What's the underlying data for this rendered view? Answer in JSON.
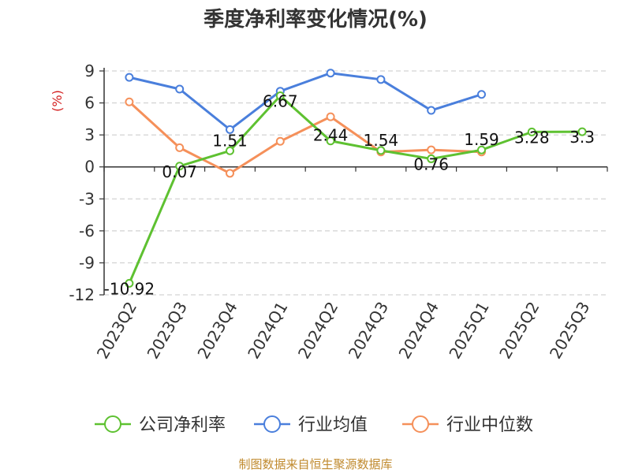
{
  "chart_data": {
    "type": "line",
    "title": "季度净利率变化情况(%)",
    "ylabel": "(%)",
    "categories": [
      "2023Q2",
      "2023Q3",
      "2023Q4",
      "2024Q1",
      "2024Q2",
      "2024Q3",
      "2024Q4",
      "2025Q1",
      "2025Q2",
      "2025Q3"
    ],
    "ylim": [
      -12,
      9
    ],
    "yticks": [
      9,
      6,
      3,
      0,
      -3,
      -6,
      -9,
      -12
    ],
    "grid": true,
    "legend_position": "bottom",
    "series": [
      {
        "name": "公司净利率",
        "color": "#5ec131",
        "values": [
          -10.92,
          0.07,
          1.51,
          6.67,
          2.44,
          1.54,
          0.76,
          1.59,
          3.28,
          3.3
        ],
        "labels": [
          "-10.92",
          "0.07",
          "1.51",
          "6.67",
          "2.44",
          "1.54",
          "0.76",
          "1.59",
          "3.28",
          "3.3"
        ]
      },
      {
        "name": "行业均值",
        "color": "#4a7fdc",
        "values": [
          8.4,
          7.3,
          3.5,
          7.1,
          8.8,
          8.2,
          5.3,
          6.8,
          null,
          null
        ]
      },
      {
        "name": "行业中位数",
        "color": "#f5905a",
        "values": [
          6.1,
          1.8,
          -0.6,
          2.4,
          4.7,
          1.4,
          1.6,
          1.4,
          null,
          null
        ]
      }
    ]
  },
  "footer": {
    "source": "制图数据来自恒生聚源数据库"
  }
}
